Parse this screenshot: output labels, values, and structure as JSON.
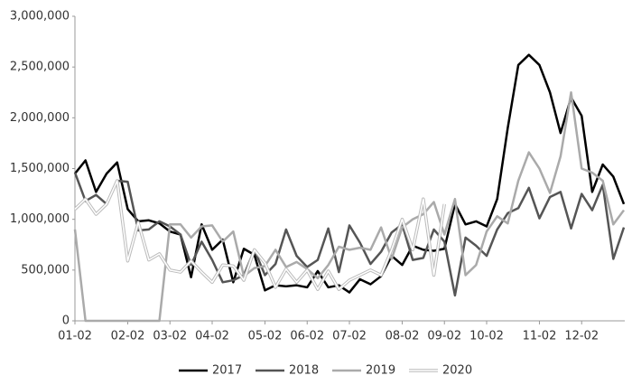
{
  "chart_data": {
    "type": "line",
    "categories": [
      "01-02",
      null,
      null,
      null,
      null,
      "02-02",
      null,
      null,
      null,
      "03-02",
      null,
      null,
      null,
      "04-02",
      null,
      null,
      null,
      null,
      "05-02",
      null,
      null,
      null,
      "06-02",
      null,
      null,
      null,
      "07-02",
      null,
      null,
      null,
      null,
      "08-02",
      null,
      null,
      null,
      "09-02",
      null,
      null,
      null,
      "10-02",
      null,
      null,
      null,
      null,
      "11-02",
      null,
      null,
      null,
      "12-02",
      null,
      null,
      null,
      null
    ],
    "series": [
      {
        "name": "2017",
        "color": "#000000",
        "values": [
          1450000,
          1580000,
          1270000,
          1450000,
          1560000,
          1100000,
          980000,
          990000,
          960000,
          880000,
          850000,
          430000,
          950000,
          700000,
          800000,
          380000,
          710000,
          650000,
          300000,
          350000,
          340000,
          350000,
          330000,
          490000,
          330000,
          350000,
          280000,
          410000,
          360000,
          440000,
          640000,
          550000,
          740000,
          700000,
          690000,
          710000,
          1150000,
          950000,
          980000,
          930000,
          1200000,
          1900000,
          2520000,
          2620000,
          2520000,
          2250000,
          1850000,
          2200000,
          2020000,
          1270000,
          1540000,
          1420000,
          1150000
        ]
      },
      {
        "name": "2018",
        "color": "#555555",
        "values": [
          1460000,
          1180000,
          1240000,
          1150000,
          1380000,
          1370000,
          890000,
          900000,
          980000,
          930000,
          850000,
          550000,
          780000,
          600000,
          380000,
          400000,
          450000,
          700000,
          450000,
          560000,
          900000,
          640000,
          530000,
          600000,
          910000,
          480000,
          940000,
          770000,
          560000,
          680000,
          870000,
          950000,
          600000,
          620000,
          900000,
          780000,
          250000,
          820000,
          740000,
          640000,
          900000,
          1060000,
          1110000,
          1310000,
          1010000,
          1220000,
          1270000,
          910000,
          1250000,
          1090000,
          1340000,
          610000,
          920000
        ]
      },
      {
        "name": "2019",
        "color": "#aaaaaa",
        "values": [
          900000,
          0,
          0,
          0,
          0,
          0,
          0,
          0,
          0,
          950000,
          950000,
          820000,
          930000,
          940000,
          780000,
          880000,
          440000,
          520000,
          540000,
          700000,
          530000,
          580000,
          510000,
          420000,
          550000,
          730000,
          700000,
          720000,
          700000,
          920000,
          610000,
          920000,
          1000000,
          1050000,
          1170000,
          850000,
          1200000,
          450000,
          550000,
          880000,
          1030000,
          960000,
          1380000,
          1660000,
          1500000,
          1260000,
          1620000,
          2250000,
          1500000,
          1460000,
          1380000,
          950000,
          1090000
        ]
      },
      {
        "name": "2020",
        "color": "#ffffff",
        "values": [
          1100000,
          1200000,
          1050000,
          1150000,
          1380000,
          590000,
          970000,
          600000,
          660000,
          500000,
          480000,
          590000,
          480000,
          380000,
          550000,
          540000,
          400000,
          700000,
          570000,
          330000,
          510000,
          380000,
          500000,
          310000,
          490000,
          310000,
          400000,
          450000,
          500000,
          450000,
          700000,
          1000000,
          700000,
          1200000,
          450000,
          1150000,
          null,
          null,
          null,
          null,
          null,
          null,
          null,
          null,
          null,
          null,
          null,
          null,
          null,
          null,
          null,
          null,
          null
        ]
      }
    ],
    "ylim": [
      0,
      3000000
    ],
    "yticks": [
      0,
      {
        "value": 500000,
        "label": "500,000"
      },
      {
        "value": 1000000,
        "label": "1,000,000"
      },
      {
        "value": 1500000,
        "label": "1,500,000"
      },
      {
        "value": 2000000,
        "label": "2,000,000"
      },
      {
        "value": 2500000,
        "label": "2,500,000"
      },
      {
        "value": 3000000,
        "label": "3,000,000"
      }
    ],
    "grid": false,
    "legend": "bottom"
  }
}
